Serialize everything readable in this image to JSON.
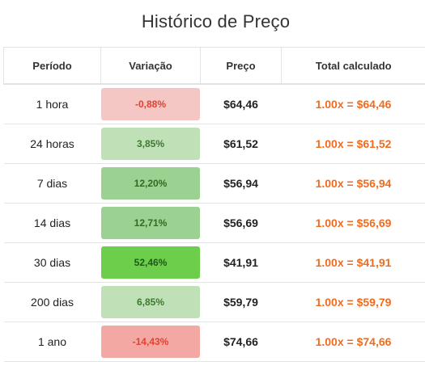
{
  "title": "Histórico de Preço",
  "headers": {
    "periodo": "Período",
    "variacao": "Variação",
    "preco": "Preço",
    "total": "Total calculado"
  },
  "rows": [
    {
      "periodo": "1 hora",
      "variacao": "-0,88%",
      "preco": "$64,46",
      "total": "1.00x = $64,46",
      "bg": "#f4c6c4",
      "fg": "#e0432f"
    },
    {
      "periodo": "24 horas",
      "variacao": "3,85%",
      "preco": "$61,52",
      "total": "1.00x = $61,52",
      "bg": "#c0e0b8",
      "fg": "#3d7a2e"
    },
    {
      "periodo": "7 dias",
      "variacao": "12,20%",
      "preco": "$56,94",
      "total": "1.00x = $56,94",
      "bg": "#9bd191",
      "fg": "#2f6b22"
    },
    {
      "periodo": "14 dias",
      "variacao": "12,71%",
      "preco": "$56,69",
      "total": "1.00x = $56,69",
      "bg": "#9bd191",
      "fg": "#2f6b22"
    },
    {
      "periodo": "30 dias",
      "variacao": "52,46%",
      "preco": "$41,91",
      "total": "1.00x = $41,91",
      "bg": "#6dce4c",
      "fg": "#1f5a14"
    },
    {
      "periodo": "200 dias",
      "variacao": "6,85%",
      "preco": "$59,79",
      "total": "1.00x = $59,79",
      "bg": "#c0e0b8",
      "fg": "#3d7a2e"
    },
    {
      "periodo": "1 ano",
      "variacao": "-14,43%",
      "preco": "$74,66",
      "total": "1.00x = $74,66",
      "bg": "#f4a8a4",
      "fg": "#e0432f"
    }
  ]
}
